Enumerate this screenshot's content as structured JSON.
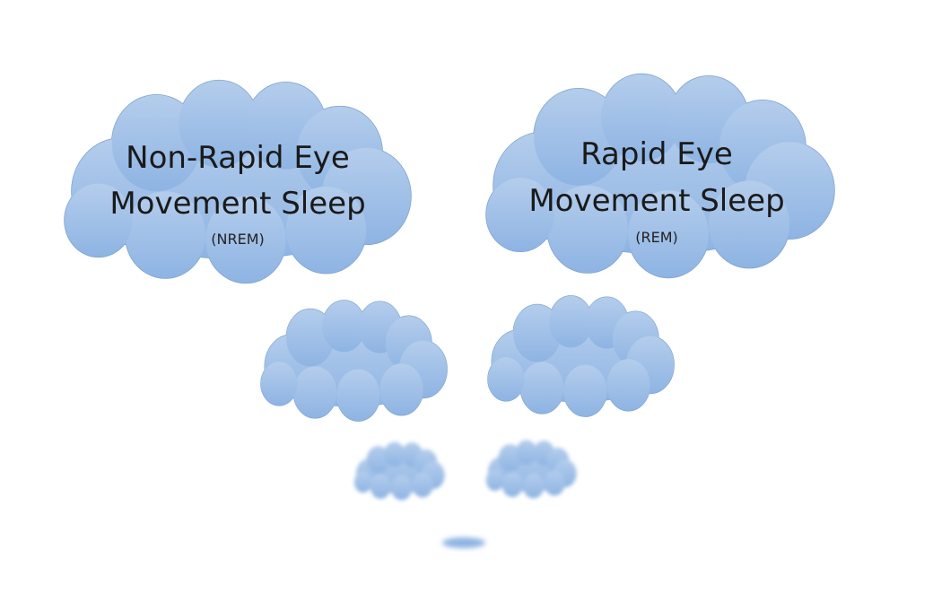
{
  "diagram": {
    "colors": {
      "cloud_top": "#b4cdec",
      "cloud_bottom": "#8eb4e3",
      "cloud_edge": "#7fa3cf",
      "text": "#1a1a1a"
    },
    "nrem_cloud": {
      "title_line1": "Non-Rapid Eye",
      "title_line2": "Movement Sleep",
      "abbreviation": "(NREM)"
    },
    "rem_cloud": {
      "title_line1": "Rapid Eye",
      "title_line2": "Movement Sleep",
      "abbreviation": "(REM)"
    }
  }
}
